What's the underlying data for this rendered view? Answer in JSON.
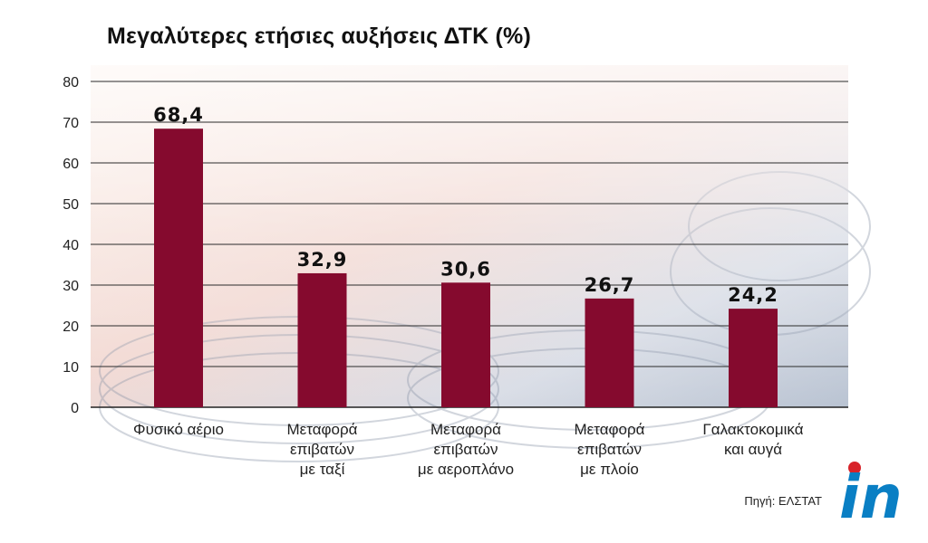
{
  "chart_data": {
    "type": "bar",
    "title": "Μεγαλύτερες ετήσιες αυξήσεις ΔΤΚ (%)",
    "categories": [
      [
        "Φυσικό αέριο"
      ],
      [
        "Μεταφορά",
        "επιβατών",
        "με ταξί"
      ],
      [
        "Μεταφορά",
        "επιβατών",
        "με αεροπλάνο"
      ],
      [
        "Μεταφορά",
        "επιβατών",
        "με πλοίο"
      ],
      [
        "Γαλακτοκομικά",
        "και αυγά"
      ]
    ],
    "values": [
      68.4,
      32.9,
      30.6,
      26.7,
      24.2
    ],
    "value_labels": [
      "68,4",
      "32,9",
      "30,6",
      "26,7",
      "24,2"
    ],
    "ylim": [
      0,
      80
    ],
    "yticks": [
      0,
      10,
      20,
      30,
      40,
      50,
      60,
      70,
      80
    ],
    "grid": true,
    "bar_color": "#850a2e",
    "xlabel": "",
    "ylabel": ""
  },
  "source": "Πηγή: ΕΛΣΤΑΤ",
  "logo": {
    "text": "in",
    "color_letters": "#0a7fc4",
    "color_dot": "#d8232a"
  }
}
